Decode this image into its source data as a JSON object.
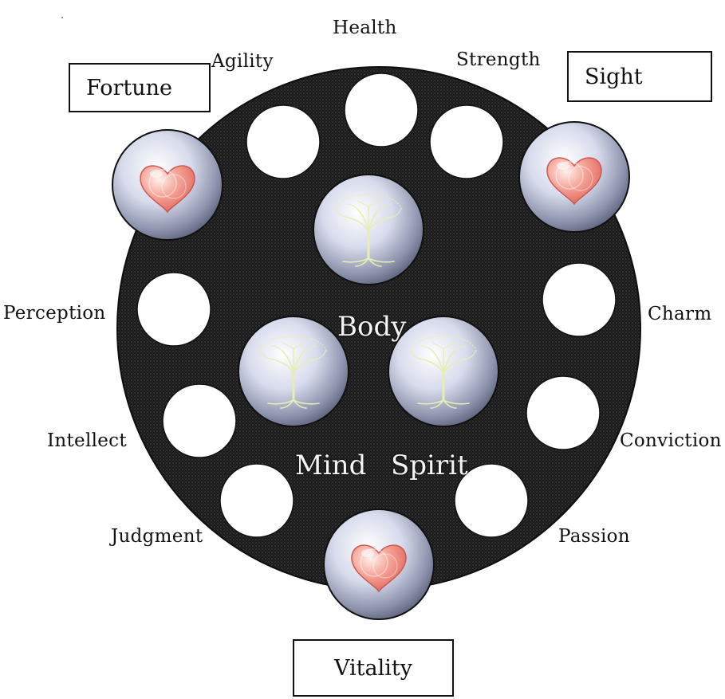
{
  "boxes": {
    "fortune": "Fortune",
    "sight": "Sight",
    "vitality": "Vitality"
  },
  "attributes": {
    "health": "Health",
    "agility": "Agility",
    "strength": "Strength",
    "perception": "Perception",
    "charm": "Charm",
    "intellect": "Intellect",
    "conviction": "Conviction",
    "judgment": "Judgment",
    "passion": "Passion"
  },
  "centers": {
    "body": "Body",
    "mind": "Mind",
    "spirit": "Spirit"
  },
  "colors": {
    "wheel": "#1f1f1f",
    "slot": "#ffffff",
    "heart": "#f0857a",
    "tree": "#e3ecb0",
    "orb": "#c9d0e6"
  },
  "icons": {
    "heart": "heart-icon",
    "tree": "tree-icon"
  }
}
